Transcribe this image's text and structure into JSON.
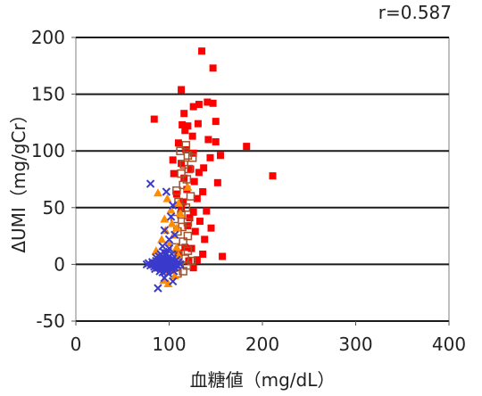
{
  "chart_data": {
    "type": "scatter",
    "annotation": "r=0.587",
    "xlabel": "血糖値（mg/dL）",
    "ylabel": "ΔUMI（mg/gCr）",
    "xlim": [
      0,
      400
    ],
    "ylim": [
      -50,
      200
    ],
    "x_ticks": [
      0,
      100,
      200,
      300,
      400
    ],
    "y_ticks": [
      -50,
      0,
      50,
      100,
      150,
      200
    ],
    "grid": "horizontal",
    "series": [
      {
        "marker": "square-filled",
        "color": "#ff0000",
        "points": [
          [
            135,
            188
          ],
          [
            147,
            173
          ],
          [
            113,
            154
          ],
          [
            141,
            143
          ],
          [
            147,
            142
          ],
          [
            126,
            139
          ],
          [
            132,
            141
          ],
          [
            116,
            133
          ],
          [
            150,
            126
          ],
          [
            84,
            128
          ],
          [
            114,
            123
          ],
          [
            120,
            122
          ],
          [
            131,
            124
          ],
          [
            117,
            118
          ],
          [
            125,
            113
          ],
          [
            142,
            110
          ],
          [
            150,
            108
          ],
          [
            183,
            104
          ],
          [
            155,
            96
          ],
          [
            110,
            107
          ],
          [
            118,
            101
          ],
          [
            126,
            98
          ],
          [
            144,
            94
          ],
          [
            104,
            92
          ],
          [
            113,
            89
          ],
          [
            137,
            85
          ],
          [
            123,
            84
          ],
          [
            132,
            81
          ],
          [
            211,
            78
          ],
          [
            105,
            80
          ],
          [
            116,
            76
          ],
          [
            127,
            73
          ],
          [
            152,
            72
          ],
          [
            119,
            66
          ],
          [
            136,
            64
          ],
          [
            108,
            62
          ],
          [
            115,
            55
          ],
          [
            130,
            58
          ],
          [
            113,
            49
          ],
          [
            126,
            46
          ],
          [
            140,
            47
          ],
          [
            122,
            41
          ],
          [
            133,
            38
          ],
          [
            120,
            34
          ],
          [
            145,
            32
          ],
          [
            128,
            29
          ],
          [
            138,
            22
          ],
          [
            117,
            15
          ],
          [
            124,
            14
          ],
          [
            136,
            9
          ],
          [
            157,
            7
          ],
          [
            121,
            3
          ],
          [
            130,
            4
          ],
          [
            110,
            10
          ],
          [
            126,
            -3
          ]
        ]
      },
      {
        "marker": "square-open",
        "color": "#a0522d",
        "points": [
          [
            118,
            105
          ],
          [
            112,
            100
          ],
          [
            120,
            96
          ],
          [
            125,
            94
          ],
          [
            116,
            88
          ],
          [
            121,
            84
          ],
          [
            113,
            80
          ],
          [
            119,
            75
          ],
          [
            115,
            70
          ],
          [
            108,
            65
          ],
          [
            123,
            60
          ],
          [
            110,
            55
          ],
          [
            118,
            50
          ],
          [
            113,
            44
          ],
          [
            106,
            40
          ],
          [
            120,
            37
          ],
          [
            114,
            33
          ],
          [
            109,
            29
          ],
          [
            120,
            25
          ],
          [
            115,
            20
          ],
          [
            106,
            15
          ],
          [
            120,
            12
          ],
          [
            110,
            8
          ],
          [
            117,
            5
          ],
          [
            124,
            3
          ],
          [
            110,
            0
          ],
          [
            104,
            -3
          ],
          [
            115,
            -6
          ],
          [
            109,
            -8
          ],
          [
            119,
            -1
          ]
        ]
      },
      {
        "marker": "triangle",
        "color": "#ff8c00",
        "points": [
          [
            88,
            63
          ],
          [
            120,
            68
          ],
          [
            98,
            58
          ],
          [
            110,
            54
          ],
          [
            102,
            48
          ],
          [
            112,
            45
          ],
          [
            95,
            40
          ],
          [
            103,
            36
          ],
          [
            108,
            32
          ],
          [
            96,
            30
          ],
          [
            105,
            26
          ],
          [
            92,
            22
          ],
          [
            100,
            19
          ],
          [
            108,
            15
          ],
          [
            86,
            12
          ],
          [
            96,
            10
          ],
          [
            110,
            8
          ],
          [
            92,
            5
          ],
          [
            87,
            3
          ],
          [
            100,
            -5
          ],
          [
            106,
            -10
          ],
          [
            94,
            -14
          ],
          [
            99,
            -17
          ]
        ]
      },
      {
        "marker": "x",
        "color": "#3a3acc",
        "points": [
          [
            80,
            71
          ],
          [
            97,
            64
          ],
          [
            104,
            52
          ],
          [
            102,
            42
          ],
          [
            95,
            30
          ],
          [
            100,
            22
          ],
          [
            106,
            26
          ],
          [
            93,
            16
          ],
          [
            100,
            14
          ],
          [
            88,
            -21
          ],
          [
            95,
            -12
          ],
          [
            104,
            -15
          ],
          [
            90,
            -6
          ],
          [
            76,
            0
          ],
          [
            78,
            1
          ],
          [
            80,
            -1
          ],
          [
            82,
            2
          ],
          [
            83,
            0
          ],
          [
            84,
            -2
          ],
          [
            85,
            1
          ],
          [
            86,
            3
          ],
          [
            87,
            -1
          ],
          [
            88,
            2
          ],
          [
            88,
            -3
          ],
          [
            89,
            0
          ],
          [
            90,
            4
          ],
          [
            90,
            -2
          ],
          [
            91,
            1
          ],
          [
            92,
            -4
          ],
          [
            92,
            3
          ],
          [
            93,
            0
          ],
          [
            93,
            6
          ],
          [
            94,
            -1
          ],
          [
            94,
            2
          ],
          [
            95,
            -3
          ],
          [
            95,
            5
          ],
          [
            96,
            0
          ],
          [
            96,
            8
          ],
          [
            97,
            -2
          ],
          [
            97,
            3
          ],
          [
            98,
            1
          ],
          [
            98,
            -5
          ],
          [
            99,
            4
          ],
          [
            99,
            -1
          ],
          [
            100,
            2
          ],
          [
            100,
            7
          ],
          [
            101,
            -2
          ],
          [
            101,
            0
          ],
          [
            102,
            3
          ],
          [
            102,
            -4
          ],
          [
            103,
            1
          ],
          [
            104,
            5
          ],
          [
            104,
            -1
          ],
          [
            105,
            2
          ],
          [
            106,
            -3
          ],
          [
            107,
            0
          ],
          [
            108,
            4
          ],
          [
            109,
            -1
          ],
          [
            110,
            2
          ],
          [
            112,
            0
          ],
          [
            91,
            9
          ],
          [
            94,
            11
          ],
          [
            97,
            10
          ],
          [
            86,
            6
          ],
          [
            89,
            7
          ],
          [
            103,
            9
          ],
          [
            85,
            -4
          ],
          [
            93,
            -7
          ],
          [
            99,
            -8
          ],
          [
            105,
            -6
          ]
        ]
      }
    ]
  }
}
